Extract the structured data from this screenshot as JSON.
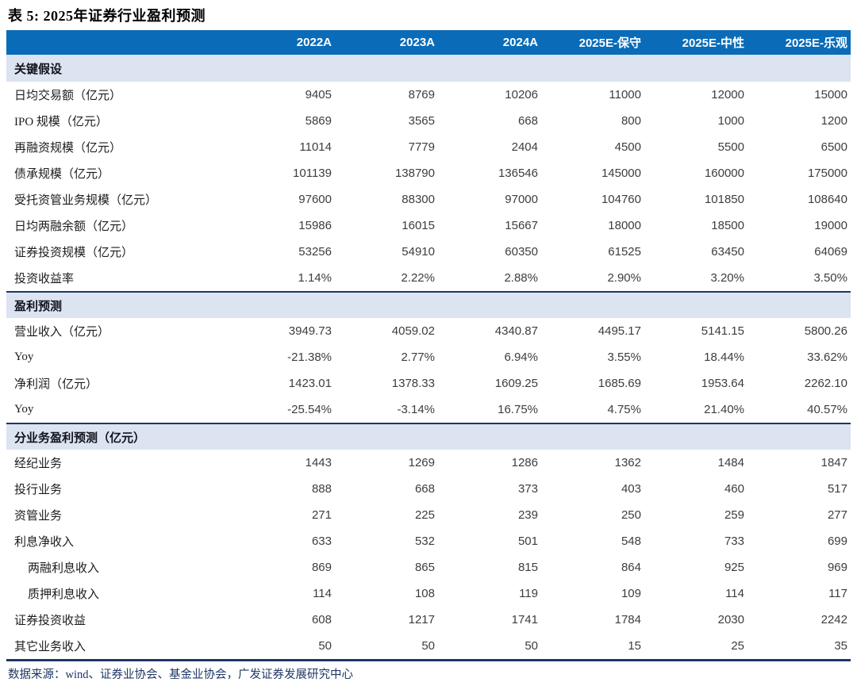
{
  "title": "表 5: 2025年证券行业盈利预测",
  "colors": {
    "header_bg": "#0A6CB8",
    "header_text": "#FFFFFF",
    "section_bg": "#DCE3F1",
    "divider_navy": "#1F3864",
    "footer_text": "#1F3864"
  },
  "table": {
    "columns": [
      "2022A",
      "2023A",
      "2024A",
      "2025E-保守",
      "2025E-中性",
      "2025E-乐观"
    ],
    "sections": [
      {
        "header": "关键假设",
        "rows": [
          {
            "label": "日均交易额（亿元）",
            "indent": false,
            "values": [
              "9405",
              "8769",
              "10206",
              "11000",
              "12000",
              "15000"
            ]
          },
          {
            "label": "IPO 规模（亿元）",
            "indent": false,
            "values": [
              "5869",
              "3565",
              "668",
              "800",
              "1000",
              "1200"
            ]
          },
          {
            "label": "再融资规模（亿元）",
            "indent": false,
            "values": [
              "11014",
              "7779",
              "2404",
              "4500",
              "5500",
              "6500"
            ]
          },
          {
            "label": "债承规模（亿元）",
            "indent": false,
            "values": [
              "101139",
              "138790",
              "136546",
              "145000",
              "160000",
              "175000"
            ]
          },
          {
            "label": "受托资管业务规模（亿元）",
            "indent": false,
            "values": [
              "97600",
              "88300",
              "97000",
              "104760",
              "101850",
              "108640"
            ]
          },
          {
            "label": "日均两融余额（亿元）",
            "indent": false,
            "values": [
              "15986",
              "16015",
              "15667",
              "18000",
              "18500",
              "19000"
            ]
          },
          {
            "label": "证券投资规模（亿元）",
            "indent": false,
            "values": [
              "53256",
              "54910",
              "60350",
              "61525",
              "63450",
              "64069"
            ]
          },
          {
            "label": "投资收益率",
            "indent": false,
            "values": [
              "1.14%",
              "2.22%",
              "2.88%",
              "2.90%",
              "3.20%",
              "3.50%"
            ]
          }
        ]
      },
      {
        "header": "盈利预测",
        "rows": [
          {
            "label": "营业收入（亿元）",
            "indent": false,
            "values": [
              "3949.73",
              "4059.02",
              "4340.87",
              "4495.17",
              "5141.15",
              "5800.26"
            ]
          },
          {
            "label": "Yoy",
            "indent": false,
            "values": [
              "-21.38%",
              "2.77%",
              "6.94%",
              "3.55%",
              "18.44%",
              "33.62%"
            ]
          },
          {
            "label": "净利润（亿元）",
            "indent": false,
            "values": [
              "1423.01",
              "1378.33",
              "1609.25",
              "1685.69",
              "1953.64",
              "2262.10"
            ]
          },
          {
            "label": "Yoy",
            "indent": false,
            "values": [
              "-25.54%",
              "-3.14%",
              "16.75%",
              "4.75%",
              "21.40%",
              "40.57%"
            ]
          }
        ]
      },
      {
        "header": "分业务盈利预测（亿元）",
        "rows": [
          {
            "label": "经纪业务",
            "indent": false,
            "values": [
              "1443",
              "1269",
              "1286",
              "1362",
              "1484",
              "1847"
            ]
          },
          {
            "label": "投行业务",
            "indent": false,
            "values": [
              "888",
              "668",
              "373",
              "403",
              "460",
              "517"
            ]
          },
          {
            "label": "资管业务",
            "indent": false,
            "values": [
              "271",
              "225",
              "239",
              "250",
              "259",
              "277"
            ]
          },
          {
            "label": "利息净收入",
            "indent": false,
            "values": [
              "633",
              "532",
              "501",
              "548",
              "733",
              "699"
            ]
          },
          {
            "label": "两融利息收入",
            "indent": true,
            "values": [
              "869",
              "865",
              "815",
              "864",
              "925",
              "969"
            ]
          },
          {
            "label": "质押利息收入",
            "indent": true,
            "values": [
              "114",
              "108",
              "119",
              "109",
              "114",
              "117"
            ]
          },
          {
            "label": "证券投资收益",
            "indent": false,
            "values": [
              "608",
              "1217",
              "1741",
              "1784",
              "2030",
              "2242"
            ]
          },
          {
            "label": "其它业务收入",
            "indent": false,
            "values": [
              "50",
              "50",
              "50",
              "15",
              "25",
              "35"
            ]
          }
        ]
      }
    ]
  },
  "footer": {
    "source": "数据来源：wind、证券业协会、基金业协会，广发证券发展研究中心"
  }
}
